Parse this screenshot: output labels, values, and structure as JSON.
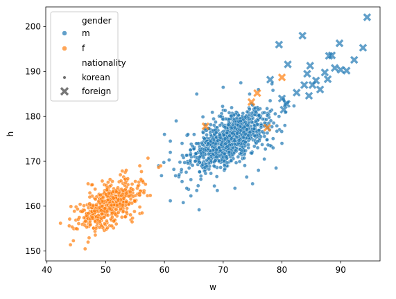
{
  "chart_data": {
    "type": "scatter",
    "title": "",
    "xlabel": "w",
    "ylabel": "h",
    "xlim": [
      39.8,
      96.7
    ],
    "ylim": [
      147.8,
      204.4
    ],
    "xticks": [
      40,
      50,
      60,
      70,
      80,
      90
    ],
    "yticks": [
      150,
      160,
      170,
      180,
      190,
      200
    ],
    "grid": false,
    "legend": {
      "placement": "top-left",
      "entries": [
        {
          "kind": "title",
          "text": "gender"
        },
        {
          "kind": "hue",
          "text": "m",
          "color": "#1f77b4"
        },
        {
          "kind": "hue",
          "text": "f",
          "color": "#ff7f0e"
        },
        {
          "kind": "title",
          "text": "nationality"
        },
        {
          "kind": "style",
          "text": "korean",
          "marker": "dot"
        },
        {
          "kind": "style",
          "text": "foreign",
          "marker": "x"
        }
      ]
    },
    "series": [
      {
        "name": "m",
        "color": "#1f77b4",
        "alpha": 0.7,
        "style": "korean",
        "cluster": {
          "center": [
            71.0,
            175.0
          ],
          "sd": [
            3.2,
            3.2
          ],
          "corr": 0.55,
          "count": 900,
          "seed": 11
        },
        "outliers": [
          [
            59.0,
            169.0
          ],
          [
            59.5,
            166.8
          ],
          [
            61.0,
            172.0
          ],
          [
            61.6,
            168.2
          ],
          [
            62.5,
            167.0
          ],
          [
            63.0,
            165.5
          ],
          [
            63.8,
            164.0
          ],
          [
            64.2,
            168.5
          ],
          [
            64.5,
            162.3
          ],
          [
            65.5,
            163.5
          ],
          [
            65.9,
            159.2
          ],
          [
            66.2,
            166.0
          ],
          [
            61.0,
            161.2
          ],
          [
            63.2,
            160.8
          ],
          [
            67.0,
            167.3
          ],
          [
            60.0,
            176.0
          ],
          [
            61.0,
            174.5
          ],
          [
            62.0,
            179.0
          ],
          [
            65.5,
            185.0
          ],
          [
            70.0,
            186.5
          ],
          [
            73.0,
            187.5
          ],
          [
            74.5,
            185.0
          ],
          [
            76.0,
            186.0
          ],
          [
            78.0,
            183.5
          ],
          [
            79.5,
            180.0
          ],
          [
            80.5,
            178.0
          ],
          [
            80.0,
            174.0
          ],
          [
            78.5,
            173.0
          ],
          [
            77.0,
            170.5
          ],
          [
            76.0,
            168.0
          ],
          [
            79.0,
            168.5
          ],
          [
            75.0,
            165.0
          ],
          [
            72.0,
            164.0
          ],
          [
            74.0,
            166.5
          ],
          [
            69.0,
            163.5
          ],
          [
            66.0,
            171.0
          ],
          [
            64.0,
            176.0
          ],
          [
            63.0,
            174.0
          ],
          [
            68.5,
            164.5
          ],
          [
            60.8,
            170.3
          ]
        ]
      },
      {
        "name": "f",
        "color": "#ff7f0e",
        "alpha": 0.7,
        "style": "korean",
        "cluster": {
          "center": [
            50.5,
            160.2
          ],
          "sd": [
            2.6,
            2.7
          ],
          "corr": 0.6,
          "count": 480,
          "seed": 23
        },
        "outliers": [
          [
            42.3,
            156.2
          ],
          [
            44.0,
            151.4
          ],
          [
            44.5,
            152.3
          ],
          [
            45.0,
            155.0
          ],
          [
            46.5,
            150.5
          ],
          [
            47.0,
            152.0
          ],
          [
            55.5,
            164.5
          ],
          [
            56.0,
            166.0
          ],
          [
            56.5,
            163.0
          ],
          [
            55.8,
            169.0
          ],
          [
            57.2,
            170.7
          ],
          [
            56.2,
            158.5
          ],
          [
            54.5,
            156.5
          ],
          [
            48.2,
            163.8
          ],
          [
            47.0,
            165.0
          ],
          [
            45.5,
            157.5
          ],
          [
            52.5,
            167.0
          ],
          [
            53.5,
            168.0
          ]
        ]
      },
      {
        "name": "m",
        "color": "#1f77b4",
        "alpha": 0.7,
        "style": "foreign",
        "points": [
          [
            78.0,
            188.2
          ],
          [
            79.5,
            196.0
          ],
          [
            80.0,
            184.0
          ],
          [
            80.3,
            181.5
          ],
          [
            80.8,
            182.8
          ],
          [
            81.0,
            191.6
          ],
          [
            82.5,
            185.3
          ],
          [
            83.5,
            198.0
          ],
          [
            83.8,
            187.0
          ],
          [
            84.3,
            189.5
          ],
          [
            84.6,
            184.6
          ],
          [
            84.8,
            191.3
          ],
          [
            85.2,
            187.0
          ],
          [
            85.8,
            188.0
          ],
          [
            86.5,
            186.0
          ],
          [
            87.3,
            189.8
          ],
          [
            87.8,
            188.3
          ],
          [
            88.0,
            193.5
          ],
          [
            88.5,
            193.6
          ],
          [
            89.0,
            190.8
          ],
          [
            89.8,
            196.3
          ],
          [
            90.0,
            190.4
          ],
          [
            91.0,
            190.2
          ],
          [
            92.3,
            192.6
          ],
          [
            93.8,
            195.3
          ],
          [
            94.5,
            202.1
          ]
        ]
      },
      {
        "name": "f",
        "color": "#ff7f0e",
        "alpha": 0.7,
        "style": "foreign",
        "points": [
          [
            67.0,
            177.8
          ],
          [
            74.8,
            183.2
          ],
          [
            75.8,
            185.2
          ],
          [
            77.5,
            177.5
          ],
          [
            80.0,
            188.7
          ]
        ]
      }
    ]
  }
}
